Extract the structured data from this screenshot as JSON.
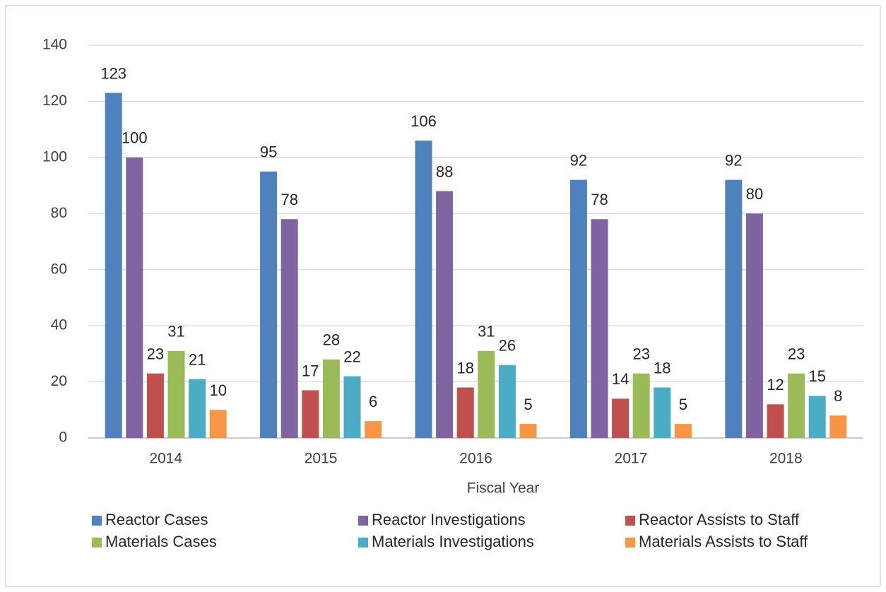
{
  "chart_data": {
    "type": "bar",
    "x_label": "Fiscal Year",
    "categories": [
      "2014",
      "2015",
      "2016",
      "2017",
      "2018"
    ],
    "series": [
      {
        "name": "Reactor Cases",
        "color": "#4f81bd",
        "values": [
          123,
          95,
          106,
          92,
          92
        ]
      },
      {
        "name": "Reactor Investigations",
        "color": "#8064a2",
        "values": [
          100,
          78,
          88,
          78,
          80
        ]
      },
      {
        "name": "Reactor Assists to Staff",
        "color": "#c0504d",
        "values": [
          23,
          17,
          18,
          14,
          12
        ]
      },
      {
        "name": "Materials Cases",
        "color": "#9bbb59",
        "values": [
          31,
          28,
          31,
          23,
          23
        ]
      },
      {
        "name": "Materials Investigations",
        "color": "#4bacc6",
        "values": [
          21,
          22,
          26,
          18,
          15
        ]
      },
      {
        "name": "Materials Assists to Staff",
        "color": "#f79646",
        "values": [
          10,
          6,
          5,
          5,
          8
        ]
      }
    ],
    "ylim": [
      0,
      140
    ],
    "yticks": [
      0,
      20,
      40,
      60,
      80,
      100,
      120,
      140
    ],
    "grid": true,
    "legend": "bottom"
  }
}
